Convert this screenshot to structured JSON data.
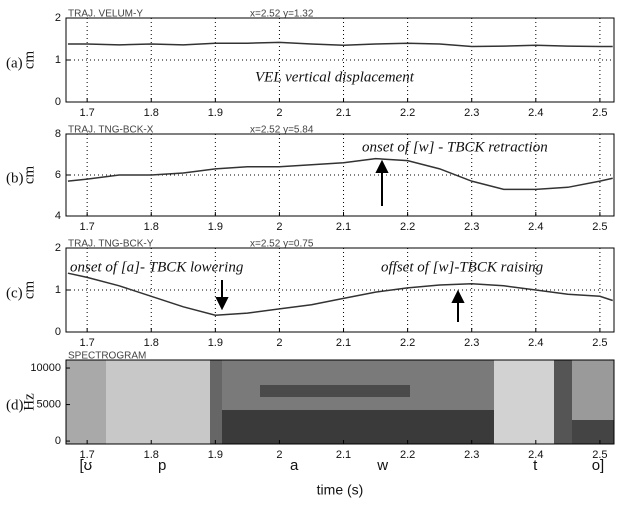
{
  "chart_data": [
    {
      "type": "line",
      "panel": "(a)",
      "title": "TRAJ. VELUM-Y",
      "cursor_label": "x=2.52 y=1.32",
      "ylabel": "cm",
      "annotations": [
        "VEL vertical displacement"
      ],
      "x": [
        1.67,
        1.7,
        1.75,
        1.8,
        1.85,
        1.9,
        1.95,
        2.0,
        2.05,
        2.1,
        2.15,
        2.2,
        2.25,
        2.3,
        2.35,
        2.4,
        2.45,
        2.5,
        2.52
      ],
      "values": [
        1.38,
        1.38,
        1.36,
        1.38,
        1.36,
        1.4,
        1.4,
        1.42,
        1.38,
        1.35,
        1.38,
        1.4,
        1.38,
        1.32,
        1.33,
        1.35,
        1.33,
        1.32,
        1.32
      ],
      "color": "#333333",
      "xlim": [
        1.667,
        2.522
      ],
      "xticks": [
        1.7,
        1.8,
        1.9,
        2,
        2.1,
        2.2,
        2.3,
        2.4,
        2.5
      ],
      "ylim": [
        0,
        2
      ],
      "yticks": [
        0,
        1,
        2
      ],
      "grid": true
    },
    {
      "type": "line",
      "panel": "(b)",
      "title": "TRAJ. TNG-BCK-X",
      "cursor_label": "x=2.52 y=5.84",
      "ylabel": "cm",
      "annotations": [
        "onset of [w] - TBCK retraction"
      ],
      "x": [
        1.67,
        1.7,
        1.75,
        1.8,
        1.85,
        1.9,
        1.95,
        2.0,
        2.05,
        2.1,
        2.15,
        2.2,
        2.25,
        2.3,
        2.35,
        2.4,
        2.45,
        2.5,
        2.52
      ],
      "values": [
        5.7,
        5.8,
        6.0,
        6.0,
        6.1,
        6.3,
        6.4,
        6.4,
        6.5,
        6.6,
        6.8,
        6.7,
        6.3,
        5.7,
        5.3,
        5.3,
        5.4,
        5.7,
        5.84
      ],
      "color": "#333333",
      "xlim": [
        1.667,
        2.522
      ],
      "xticks": [
        1.7,
        1.8,
        1.9,
        2,
        2.1,
        2.2,
        2.3,
        2.4,
        2.5
      ],
      "ylim": [
        4,
        8
      ],
      "yticks": [
        4,
        6,
        8
      ],
      "grid": true
    },
    {
      "type": "line",
      "panel": "(c)",
      "title": "TRAJ. TNG-BCK-Y",
      "cursor_label": "x=2.52 y=0.75",
      "ylabel": "cm",
      "annotations": [
        "onset of [a]- TBCK lowering",
        "offset of [w]-TBCK raising"
      ],
      "x": [
        1.67,
        1.7,
        1.75,
        1.8,
        1.85,
        1.9,
        1.95,
        2.0,
        2.05,
        2.1,
        2.15,
        2.2,
        2.25,
        2.3,
        2.35,
        2.4,
        2.45,
        2.5,
        2.52
      ],
      "values": [
        1.4,
        1.3,
        1.1,
        0.85,
        0.6,
        0.4,
        0.45,
        0.55,
        0.65,
        0.8,
        0.95,
        1.05,
        1.12,
        1.15,
        1.1,
        1.0,
        0.9,
        0.85,
        0.75
      ],
      "color": "#333333",
      "xlim": [
        1.667,
        2.522
      ],
      "xticks": [
        1.7,
        1.8,
        1.9,
        2,
        2.1,
        2.2,
        2.3,
        2.4,
        2.5
      ],
      "ylim": [
        0,
        2
      ],
      "yticks": [
        0,
        1,
        2
      ],
      "grid": true
    },
    {
      "type": "spectrogram",
      "panel": "(d)",
      "title": "SPECTROGRAM",
      "ylabel": "Hz",
      "xlabel": "time (s)",
      "phones": [
        "[ʊ",
        "p",
        "a",
        "w",
        "t",
        "o]"
      ],
      "phone_times": [
        1.698,
        1.817,
        2.023,
        2.161,
        2.399,
        2.497
      ],
      "xlim": [
        1.667,
        2.522
      ],
      "xticks": [
        1.7,
        1.8,
        1.9,
        2,
        2.1,
        2.2,
        2.3,
        2.4,
        2.5
      ],
      "ylim": [
        -400,
        11100
      ],
      "yticks": [
        0,
        5000,
        10000
      ],
      "grid": false
    }
  ]
}
